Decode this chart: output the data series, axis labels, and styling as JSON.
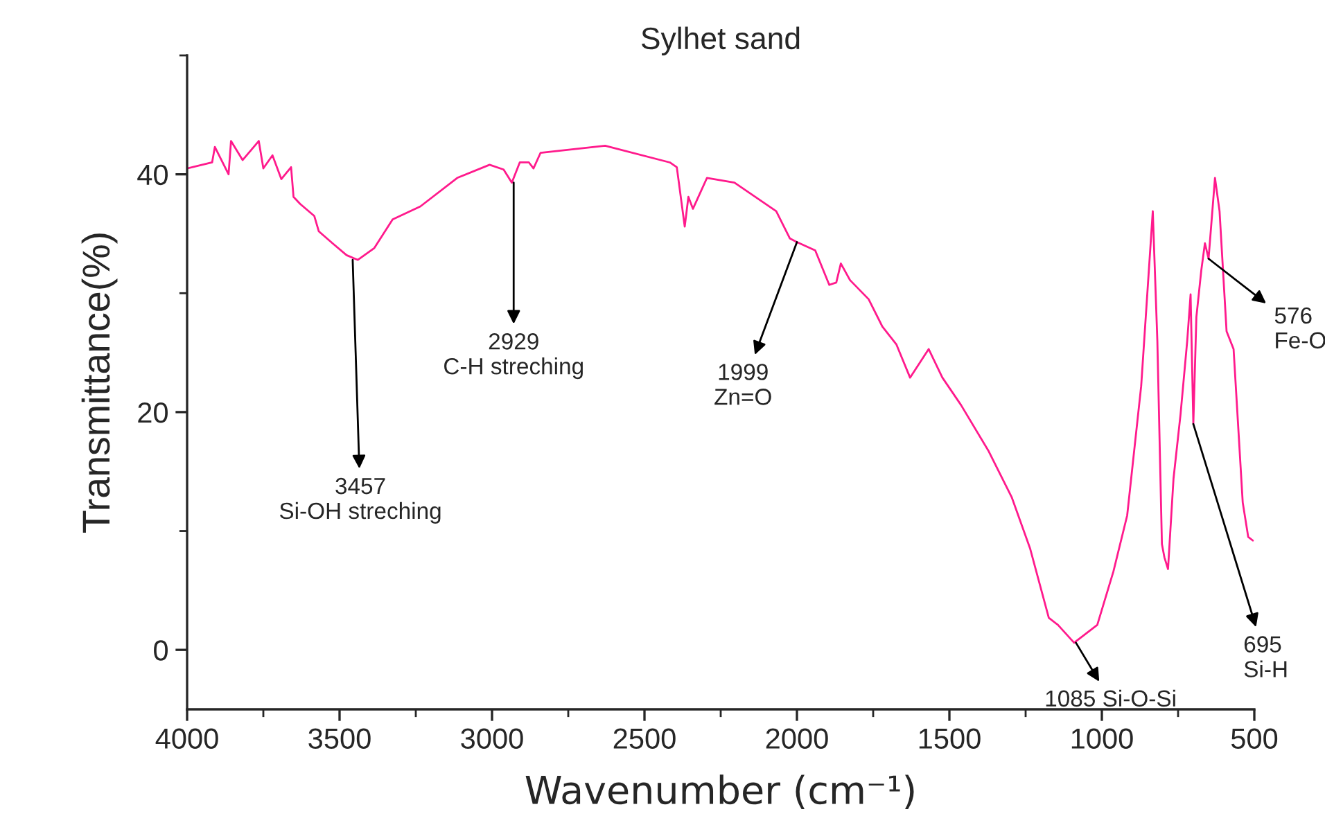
{
  "chart_data": {
    "type": "line",
    "title": "Sylhet sand",
    "xlabel": "Wavenumber (cm⁻¹)",
    "ylabel": "Transmittance(%)",
    "xlim": [
      4000,
      500
    ],
    "xticks": [
      4000,
      3500,
      3000,
      2500,
      2000,
      1500,
      1000,
      500
    ],
    "ylim": [
      -5,
      50
    ],
    "yticks": [
      0,
      20,
      40
    ],
    "grid": false,
    "marker": "none",
    "line_style": "solid",
    "series": [
      {
        "color": "#ff1a8c",
        "x": [
          4000,
          3918,
          3909,
          3864,
          3856,
          3818,
          3765,
          3750,
          3720,
          3691,
          3659,
          3651,
          3629,
          3583,
          3568,
          3523,
          3477,
          3440,
          3386,
          3326,
          3235,
          3114,
          3008,
          2962,
          2935,
          2909,
          2879,
          2864,
          2841,
          2629,
          2417,
          2394,
          2368,
          2356,
          2341,
          2295,
          2205,
          2068,
          2023,
          2000,
          1940,
          1894,
          1871,
          1856,
          1826,
          1765,
          1720,
          1674,
          1629,
          1568,
          1523,
          1462,
          1371,
          1295,
          1235,
          1174,
          1144,
          1091,
          1015,
          962,
          917,
          871,
          833,
          818,
          803,
          795,
          783,
          765,
          742,
          720,
          709,
          700,
          690,
          674,
          662,
          650,
          629,
          614,
          591,
          568,
          538,
          520,
          505
        ],
        "values": [
          40.5,
          41.0,
          42.3,
          40.0,
          42.8,
          41.2,
          42.8,
          40.5,
          41.6,
          39.6,
          40.6,
          38.1,
          37.5,
          36.5,
          35.2,
          34.2,
          33.2,
          32.8,
          33.8,
          36.2,
          37.3,
          39.7,
          40.8,
          40.4,
          39.3,
          41.0,
          41.0,
          40.5,
          41.8,
          42.4,
          41.0,
          40.6,
          35.6,
          38.1,
          37.1,
          39.7,
          39.3,
          36.9,
          34.6,
          34.3,
          33.6,
          30.7,
          30.9,
          32.5,
          31.1,
          29.5,
          27.2,
          25.7,
          22.9,
          25.3,
          22.9,
          20.6,
          16.7,
          12.8,
          8.5,
          2.7,
          2.1,
          0.6,
          2.1,
          6.6,
          11.3,
          22.2,
          36.9,
          26.0,
          8.9,
          7.8,
          6.8,
          14.4,
          19.8,
          26.0,
          29.9,
          19.0,
          28.0,
          31.9,
          34.2,
          32.9,
          39.7,
          36.9,
          26.8,
          25.3,
          12.4,
          9.5,
          9.2
        ]
      }
    ],
    "annotations": [
      {
        "text": "3457\nSi-OH streching",
        "x": 3457,
        "y": 32.8
      },
      {
        "text": "2929\nC-H streching",
        "x": 2929,
        "y": 39.3
      },
      {
        "text": "1999\nZn=O",
        "x": 2000,
        "y": 34.3
      },
      {
        "text": "1085 Si-O-Si",
        "x": 1085,
        "y": 0.6
      },
      {
        "text": "695\nSi-H",
        "x": 700,
        "y": 19.0
      },
      {
        "text": "576\nFe-O",
        "x": 650,
        "y": 32.9
      }
    ]
  }
}
